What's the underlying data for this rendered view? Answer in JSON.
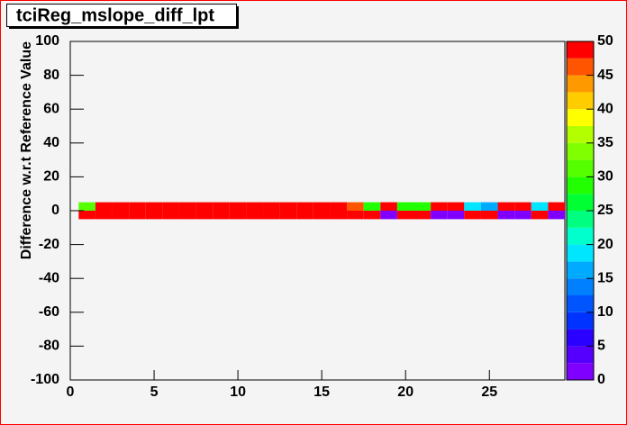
{
  "chart_data": {
    "type": "heatmap",
    "title": "tciReg_mslope_diff_lpt",
    "y_label": "Difference w.r.t Reference Value",
    "xbins": [
      0.5,
      1.5,
      2.5,
      3.5,
      4.5,
      5.5,
      6.5,
      7.5,
      8.5,
      9.5,
      10.5,
      11.5,
      12.5,
      13.5,
      14.5,
      15.5,
      16.5,
      17.5,
      18.5,
      19.5,
      20.5,
      21.5,
      22.5,
      23.5,
      24.5,
      25.5,
      26.5,
      27.5,
      28.5,
      29.5
    ],
    "ybins": [
      -5,
      0,
      5
    ],
    "z": [
      [
        49,
        49,
        49,
        49,
        49,
        49,
        49,
        49,
        49,
        49,
        49,
        49,
        49,
        49,
        49,
        49,
        49,
        49,
        1,
        49,
        49,
        1,
        1,
        49,
        49,
        1,
        1,
        49,
        1
      ],
      [
        31,
        49,
        49,
        49,
        49,
        49,
        49,
        49,
        49,
        49,
        49,
        49,
        49,
        49,
        49,
        49,
        46,
        28,
        49,
        28,
        28,
        49,
        49,
        18,
        16,
        49,
        49,
        18,
        49
      ]
    ],
    "xlim": [
      0,
      29.5
    ],
    "xticks": [
      0,
      5,
      10,
      15,
      20,
      25
    ],
    "ylim": [
      -100,
      100
    ],
    "yticks": [
      -100,
      -80,
      -60,
      -40,
      -20,
      0,
      20,
      40,
      60,
      80,
      100
    ],
    "zlim": [
      0,
      50
    ],
    "zticks": [
      0,
      5,
      10,
      15,
      20,
      25,
      30,
      35,
      40,
      45,
      50
    ],
    "palette": [
      "#7f00ff",
      "#5500ff",
      "#2a00ff",
      "#0033ff",
      "#0055ff",
      "#0080ff",
      "#00aaff",
      "#00e6ff",
      "#00ffcc",
      "#00ff80",
      "#00ff33",
      "#22ff00",
      "#55ff00",
      "#80ff00",
      "#b3ff00",
      "#ffff00",
      "#ffcc00",
      "#ff9900",
      "#ff5500",
      "#ff0000"
    ]
  }
}
